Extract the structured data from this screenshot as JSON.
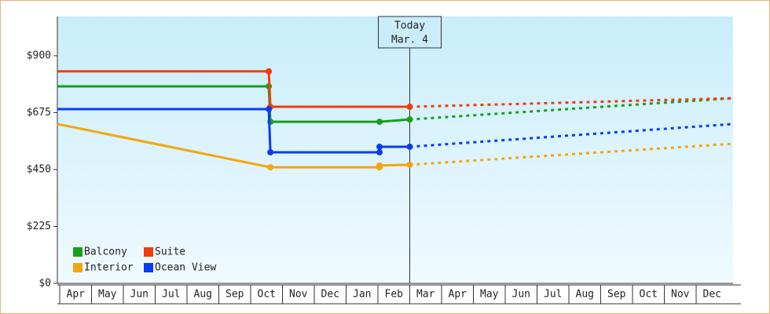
{
  "chart_data": {
    "type": "line",
    "annotation": {
      "x": 11,
      "lines": [
        "Today",
        "Mar. 4"
      ]
    },
    "xlim": [
      -0.074,
      21.16
    ],
    "xticks": [
      {
        "value": 0,
        "label": "Apr"
      },
      {
        "value": 1,
        "label": "May"
      },
      {
        "value": 2,
        "label": "Jun"
      },
      {
        "value": 3,
        "label": "Jul"
      },
      {
        "value": 4,
        "label": "Aug"
      },
      {
        "value": 5,
        "label": "Sep"
      },
      {
        "value": 6,
        "label": "Oct"
      },
      {
        "value": 7,
        "label": "Nov"
      },
      {
        "value": 8,
        "label": "Dec"
      },
      {
        "value": 9,
        "label": "Jan"
      },
      {
        "value": 10,
        "label": "Feb"
      },
      {
        "value": 11,
        "label": "Mar"
      },
      {
        "value": 12,
        "label": "Apr"
      },
      {
        "value": 13,
        "label": "May"
      },
      {
        "value": 14,
        "label": "Jun"
      },
      {
        "value": 15,
        "label": "Jul"
      },
      {
        "value": 16,
        "label": "Aug"
      },
      {
        "value": 17,
        "label": "Sep"
      },
      {
        "value": 18,
        "label": "Oct"
      },
      {
        "value": 19,
        "label": "Nov"
      },
      {
        "value": 20,
        "label": "Dec"
      }
    ],
    "ylim": [
      0,
      1055
    ],
    "yticks": [
      {
        "value": 0,
        "label": "$0"
      },
      {
        "value": 225,
        "label": "$225"
      },
      {
        "value": 450,
        "label": "$450"
      },
      {
        "value": 675,
        "label": "$675"
      },
      {
        "value": 900,
        "label": "$900"
      }
    ],
    "series": [
      {
        "name": "Balcony",
        "color": "#17a01a",
        "x": [
          -0.074,
          6.57,
          6.62,
          10.05,
          11,
          21.16
        ],
        "values": [
          779,
          779,
          639,
          639,
          648,
          732
        ]
      },
      {
        "name": "Suite",
        "color": "#f23c0a",
        "x": [
          -0.074,
          6.57,
          6.62,
          11,
          21.16
        ],
        "values": [
          838,
          838,
          698,
          698,
          732
        ]
      },
      {
        "name": "Interior",
        "color": "#f5a50c",
        "x": [
          -0.074,
          6.62,
          10.05,
          10.05,
          11,
          21.16
        ],
        "values": [
          630,
          459,
          459,
          466,
          469,
          552
        ]
      },
      {
        "name": "Ocean View",
        "color": "#0a3cf2",
        "x": [
          -0.074,
          6.57,
          6.62,
          10.05,
          10.05,
          11,
          21.16
        ],
        "values": [
          689,
          689,
          518,
          518,
          540,
          540,
          630
        ]
      }
    ]
  }
}
